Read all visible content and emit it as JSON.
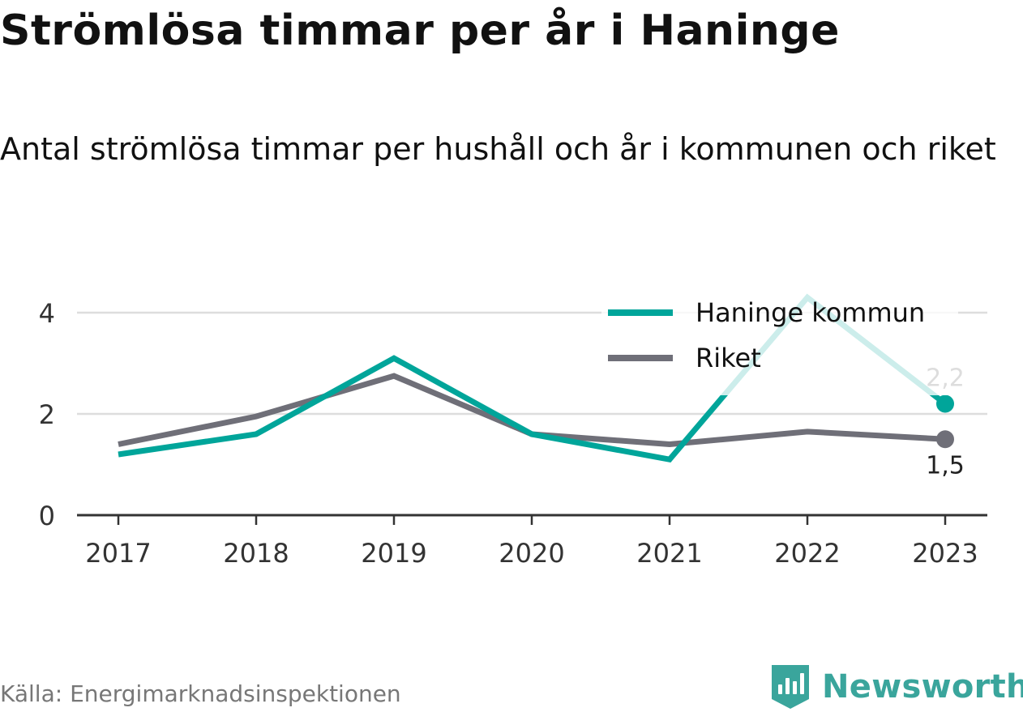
{
  "title": "Strömlösa timmar per år i Haninge",
  "subtitle": "Antal strömlösa timmar per hushåll och år i kommunen och riket",
  "source": "Källa: Energimarknadsinspektionen",
  "brand": "Newsworthy",
  "colors": {
    "haninge": "#00a59a",
    "riket": "#6f6f78",
    "grid": "#dddddd",
    "axis": "#333333",
    "brand": "#3aa59c"
  },
  "chart_data": {
    "type": "line",
    "x": [
      "2017",
      "2018",
      "2019",
      "2020",
      "2021",
      "2022",
      "2023"
    ],
    "ylim": [
      0,
      4.8
    ],
    "yticks": [
      0,
      2,
      4
    ],
    "ytick_labels": [
      "0",
      "2",
      "4"
    ],
    "grid": true,
    "legend": "top-right",
    "series": [
      {
        "name": "Haninge kommun",
        "color": "#00a59a",
        "values": [
          1.2,
          1.6,
          3.1,
          1.6,
          1.1,
          4.3,
          2.2
        ],
        "end_label": "2,2"
      },
      {
        "name": "Riket",
        "color": "#6f6f78",
        "values": [
          1.4,
          1.95,
          2.75,
          1.6,
          1.4,
          1.65,
          1.5
        ],
        "end_label": "1,5"
      }
    ]
  }
}
